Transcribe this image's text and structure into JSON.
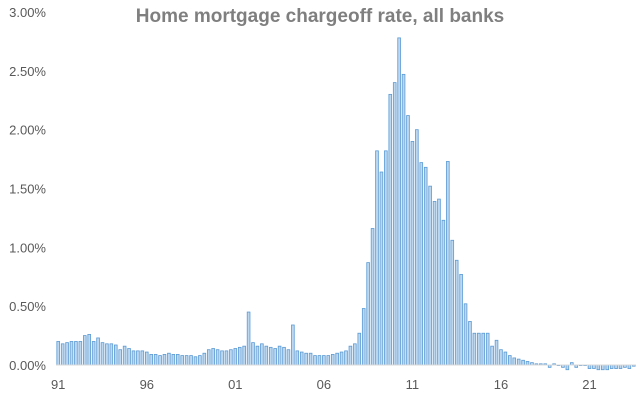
{
  "chart_data": {
    "type": "bar",
    "title": "Home mortgage chargeoff rate, all banks",
    "xlabel": "",
    "ylabel": "",
    "ylim": [
      0,
      0.03
    ],
    "y_ticks": [
      "0.00%",
      "0.50%",
      "1.00%",
      "1.50%",
      "2.00%",
      "2.50%",
      "3.00%"
    ],
    "y_tick_values": [
      0,
      0.005,
      0.01,
      0.015,
      0.02,
      0.025,
      0.03
    ],
    "x_tick_labels": [
      "91",
      "96",
      "01",
      "06",
      "11",
      "16",
      "21"
    ],
    "x_tick_index": [
      0,
      20,
      40,
      60,
      80,
      100,
      120
    ],
    "grid": false,
    "legend": "none",
    "bar_color": "#bdd7ee",
    "bar_edge_color": "#5b9bd5",
    "categories": [
      "1991Q1",
      "1991Q2",
      "1991Q3",
      "1991Q4",
      "1992Q1",
      "1992Q2",
      "1992Q3",
      "1992Q4",
      "1993Q1",
      "1993Q2",
      "1993Q3",
      "1993Q4",
      "1994Q1",
      "1994Q2",
      "1994Q3",
      "1994Q4",
      "1995Q1",
      "1995Q2",
      "1995Q3",
      "1995Q4",
      "1996Q1",
      "1996Q2",
      "1996Q3",
      "1996Q4",
      "1997Q1",
      "1997Q2",
      "1997Q3",
      "1997Q4",
      "1998Q1",
      "1998Q2",
      "1998Q3",
      "1998Q4",
      "1999Q1",
      "1999Q2",
      "1999Q3",
      "1999Q4",
      "2000Q1",
      "2000Q2",
      "2000Q3",
      "2000Q4",
      "2001Q1",
      "2001Q2",
      "2001Q3",
      "2001Q4",
      "2002Q1",
      "2002Q2",
      "2002Q3",
      "2002Q4",
      "2003Q1",
      "2003Q2",
      "2003Q3",
      "2003Q4",
      "2004Q1",
      "2004Q2",
      "2004Q3",
      "2004Q4",
      "2005Q1",
      "2005Q2",
      "2005Q3",
      "2005Q4",
      "2006Q1",
      "2006Q2",
      "2006Q3",
      "2006Q4",
      "2007Q1",
      "2007Q2",
      "2007Q3",
      "2007Q4",
      "2008Q1",
      "2008Q2",
      "2008Q3",
      "2008Q4",
      "2009Q1",
      "2009Q2",
      "2009Q3",
      "2009Q4",
      "2010Q1",
      "2010Q2",
      "2010Q3",
      "2010Q4",
      "2011Q1",
      "2011Q2",
      "2011Q3",
      "2011Q4",
      "2012Q1",
      "2012Q2",
      "2012Q3",
      "2012Q4",
      "2013Q1",
      "2013Q2",
      "2013Q3",
      "2013Q4",
      "2014Q1",
      "2014Q2",
      "2014Q3",
      "2014Q4",
      "2015Q1",
      "2015Q2",
      "2015Q3",
      "2015Q4",
      "2016Q1",
      "2016Q2",
      "2016Q3",
      "2016Q4",
      "2017Q1",
      "2017Q2",
      "2017Q3",
      "2017Q4",
      "2018Q1",
      "2018Q2",
      "2018Q3",
      "2018Q4",
      "2019Q1",
      "2019Q2",
      "2019Q3",
      "2019Q4",
      "2020Q1",
      "2020Q2",
      "2020Q3",
      "2020Q4",
      "2021Q1",
      "2021Q2",
      "2021Q3",
      "2021Q4",
      "2022Q1",
      "2022Q2",
      "2022Q3",
      "2022Q4",
      "2023Q1",
      "2023Q2",
      "2023Q3"
    ],
    "values": [
      0.002,
      0.0018,
      0.0019,
      0.002,
      0.002,
      0.002,
      0.0025,
      0.0026,
      0.002,
      0.0023,
      0.0019,
      0.0018,
      0.0018,
      0.0017,
      0.0013,
      0.0016,
      0.0014,
      0.0012,
      0.0012,
      0.0012,
      0.0011,
      0.0009,
      0.0009,
      0.0008,
      0.0009,
      0.001,
      0.0009,
      0.0009,
      0.0008,
      0.0008,
      0.0008,
      0.0007,
      0.0008,
      0.001,
      0.0013,
      0.0014,
      0.0013,
      0.0012,
      0.0012,
      0.0013,
      0.0014,
      0.0015,
      0.0016,
      0.0045,
      0.0019,
      0.0016,
      0.0018,
      0.0016,
      0.0015,
      0.0014,
      0.0016,
      0.0015,
      0.0013,
      0.0034,
      0.0012,
      0.0011,
      0.001,
      0.001,
      0.0008,
      0.0008,
      0.0008,
      0.0008,
      0.0009,
      0.001,
      0.0011,
      0.0012,
      0.0016,
      0.0018,
      0.0027,
      0.0048,
      0.0087,
      0.0116,
      0.0182,
      0.0164,
      0.0182,
      0.023,
      0.024,
      0.0278,
      0.0247,
      0.0212,
      0.019,
      0.02,
      0.0172,
      0.0168,
      0.0152,
      0.0139,
      0.0141,
      0.0123,
      0.0173,
      0.0106,
      0.0089,
      0.0077,
      0.0052,
      0.0037,
      0.0027,
      0.0027,
      0.0027,
      0.0027,
      0.0016,
      0.0021,
      0.0013,
      0.0011,
      0.0008,
      0.0006,
      0.0005,
      0.0004,
      0.0003,
      0.0002,
      0.0001,
      0.0001,
      0.0001,
      -0.0002,
      0.0001,
      0.0,
      -0.0002,
      -0.0004,
      0.0002,
      -0.0002,
      0.0,
      0.0,
      -0.0003,
      -0.0003,
      -0.0004,
      -0.0004,
      -0.0004,
      -0.0003,
      -0.0003,
      -0.0003,
      -0.0002,
      -0.0003,
      -0.0001
    ]
  }
}
